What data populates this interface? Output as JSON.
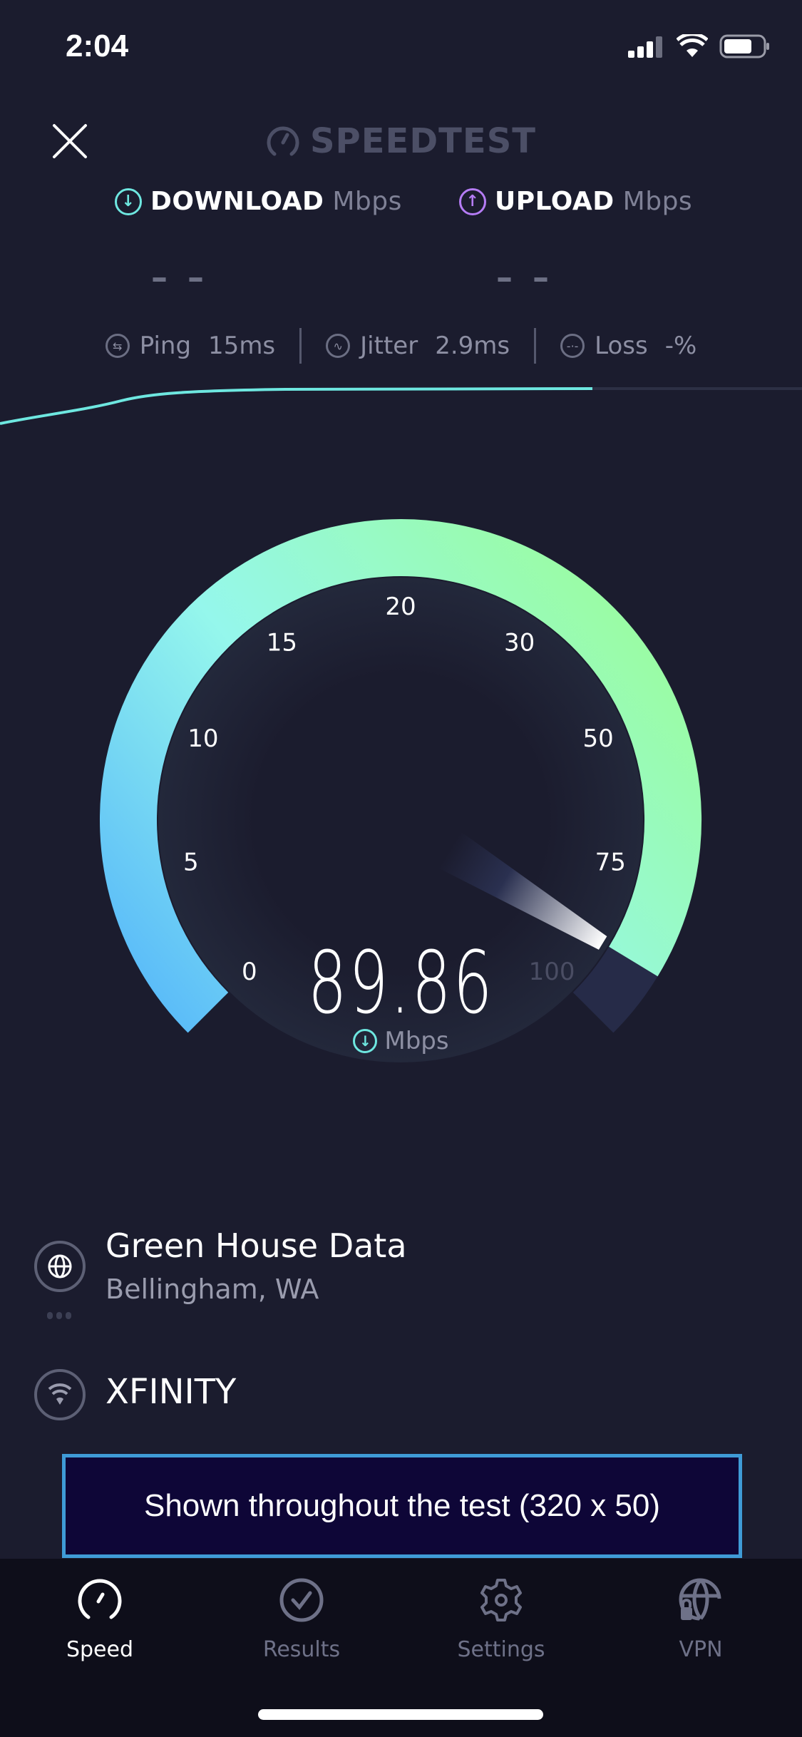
{
  "status_bar": {
    "time": "2:04",
    "icons": [
      "cellular-signal-icon",
      "wifi-icon",
      "battery-icon"
    ]
  },
  "header": {
    "close_icon": "close-icon",
    "logo_text": "SPEEDTEST"
  },
  "download": {
    "label": "DOWNLOAD",
    "unit": "Mbps",
    "value": "– –",
    "color": "#6ee7e0"
  },
  "upload": {
    "label": "UPLOAD",
    "unit": "Mbps",
    "value": "– –",
    "color": "#b57cf5"
  },
  "stats": {
    "ping": {
      "label": "Ping",
      "value": "15",
      "unit": "ms"
    },
    "jitter": {
      "label": "Jitter",
      "value": "2.9",
      "unit": "ms"
    },
    "loss": {
      "label": "Loss",
      "value": "-%"
    }
  },
  "gauge": {
    "ticks": [
      "0",
      "5",
      "10",
      "15",
      "20",
      "30",
      "50",
      "75",
      "100"
    ],
    "value": 89.86,
    "readout": "89.86",
    "unit": "Mbps",
    "colors": {
      "start": "#55b6fa",
      "mid": "#95f7ec",
      "end": "#9afca6",
      "track": "#262b48"
    }
  },
  "server": {
    "name": "Green House Data",
    "location": "Bellingham, WA"
  },
  "provider": {
    "name": "XFINITY"
  },
  "ad": {
    "text": "Shown throughout the test (320 x 50)"
  },
  "nav": {
    "items": [
      {
        "label": "Speed",
        "icon": "speedometer-icon",
        "active": true
      },
      {
        "label": "Results",
        "icon": "check-circle-icon",
        "active": false
      },
      {
        "label": "Settings",
        "icon": "gear-icon",
        "active": false
      },
      {
        "label": "VPN",
        "icon": "globe-lock-icon",
        "active": false
      }
    ]
  }
}
